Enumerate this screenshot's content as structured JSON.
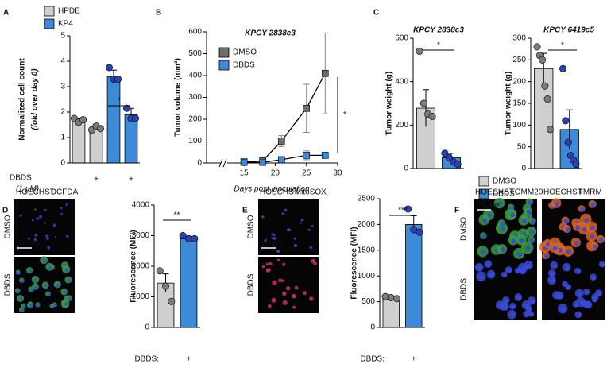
{
  "chart_data": [
    {
      "type": "bar",
      "panel": "A",
      "ylabel": "Normalized cell count",
      "ylabel_sub": "(fold over day 0)",
      "categories": [
        null,
        "+"
      ],
      "x_label": "DBDS",
      "x_label_sub": "(1 µM)",
      "series": [
        {
          "name": "HPDE",
          "color": "#cfcfcf",
          "point_color": "#7a7a7a",
          "values": [
            1.65,
            1.35
          ],
          "errors": [
            0.08,
            0.06
          ],
          "points": [
            [
              1.75,
              1.6,
              1.7
            ],
            [
              1.3,
              1.45,
              1.35
            ]
          ]
        },
        {
          "name": "KP4",
          "color": "#3d8ad8",
          "point_color": "#2e3fb2",
          "values": [
            3.4,
            1.9
          ],
          "errors": [
            0.25,
            0.25
          ],
          "points": [
            [
              3.75,
              3.3,
              3.3
            ],
            [
              2.15,
              1.75,
              1.75
            ]
          ]
        }
      ],
      "ylim": [
        0,
        5
      ],
      "yticks": [
        0,
        1,
        2,
        3,
        4,
        5
      ],
      "significance": "*"
    },
    {
      "type": "line",
      "panel": "B",
      "title": "KPCY 2838c3",
      "ylabel": "Tumor volume (mm³)",
      "xlabel": "Days post inoculation",
      "x": [
        15,
        18,
        21,
        25,
        28
      ],
      "series": [
        {
          "name": "DMSO",
          "color": "#6e6e6e",
          "values": [
            5,
            10,
            100,
            250,
            410
          ],
          "errors": [
            0,
            0,
            25,
            110,
            185
          ]
        },
        {
          "name": "DBDS",
          "color": "#3d8ad8",
          "values": [
            3,
            3,
            15,
            35,
            35
          ],
          "errors": [
            0,
            0,
            5,
            20,
            12
          ]
        }
      ],
      "xlim": [
        9,
        30
      ],
      "xticks": [
        15,
        20,
        25,
        30
      ],
      "ylim": [
        0,
        600
      ],
      "yticks": [
        0,
        100,
        200,
        300,
        400,
        500,
        600
      ],
      "significance": "*"
    },
    {
      "type": "bar",
      "panel": "C",
      "title": "KPCY 2838c3",
      "ylabel": "Tumor weight (g)",
      "values": [
        278,
        50
      ],
      "colors": [
        "#cfcfcf",
        "#3d8ad8"
      ],
      "point_colors": [
        "#7a7a7a",
        "#2e3fb2"
      ],
      "errors": [
        85,
        20
      ],
      "points": [
        [
          540,
          300,
          250,
          240
        ],
        [
          70,
          50,
          30,
          20
        ]
      ],
      "ylim": [
        0,
        600
      ],
      "yticks": [
        0,
        200,
        400,
        600
      ],
      "significance": "*"
    },
    {
      "type": "bar",
      "title": "KPCY 6419c5",
      "ylabel": "Tumor weight (g)",
      "values": [
        230,
        90
      ],
      "colors": [
        "#cfcfcf",
        "#3d8ad8"
      ],
      "point_colors": [
        "#7a7a7a",
        "#2e3fb2"
      ],
      "errors": [
        35,
        45
      ],
      "points": [
        [
          280,
          260,
          250,
          190,
          160,
          90
        ],
        [
          230,
          110,
          60,
          30,
          20,
          10
        ]
      ],
      "ylim": [
        0,
        300
      ],
      "yticks": [
        0,
        50,
        100,
        150,
        200,
        250,
        300
      ],
      "significance": "*",
      "legend": [
        {
          "name": "DMSO",
          "color": "#cfcfcf"
        },
        {
          "name": "DBDS",
          "color": "#3d8ad8"
        }
      ]
    },
    {
      "type": "bar",
      "ylabel": "Fluorescence (MFI)",
      "categories": [
        null,
        "+"
      ],
      "x_label": "DBDS:",
      "values": [
        1450,
        2900
      ],
      "colors": [
        "#cfcfcf",
        "#3d8ad8"
      ],
      "point_colors": [
        "#7a7a7a",
        "#2e3fb2"
      ],
      "errors": [
        300,
        80
      ],
      "points": [
        [
          1850,
          1350,
          850
        ],
        [
          3000,
          2900,
          2900
        ]
      ],
      "ylim": [
        0,
        4000
      ],
      "yticks": [
        0,
        1000,
        2000,
        3000,
        4000
      ],
      "significance": "**"
    },
    {
      "type": "bar",
      "ylabel": "Fluorescence (MFI)",
      "categories": [
        null,
        "+"
      ],
      "x_label": "DBDS:",
      "values": [
        550,
        2000
      ],
      "colors": [
        "#cfcfcf",
        "#3d8ad8"
      ],
      "point_colors": [
        "#7a7a7a",
        "#2e3fb2"
      ],
      "errors": [
        40,
        170
      ],
      "points": [
        [
          600,
          580,
          560
        ],
        [
          2300,
          1900,
          1850
        ]
      ],
      "ylim": [
        0,
        2500
      ],
      "yticks": [
        0,
        500,
        1000,
        1500,
        2000,
        2500
      ],
      "significance": "***"
    }
  ],
  "image_panels": [
    {
      "panel": "D",
      "rows": [
        "DMSO",
        "DBDS"
      ],
      "scale_bar": "50 µm",
      "columns": [
        {
          "channels": [
            {
              "name": "HOECHST",
              "color": "#5a5ad8"
            },
            {
              "name": "DCFDA",
              "color": "#3aa83a"
            }
          ]
        }
      ]
    },
    {
      "panel": "E",
      "rows": [
        "DMSO",
        "DBDS"
      ],
      "scale_bar": "50 µm",
      "columns": [
        {
          "channels": [
            {
              "name": "HOECHST",
              "color": "#5a5ad8"
            },
            {
              "name": "MitoSOX",
              "color": "#d8304a"
            }
          ]
        }
      ]
    },
    {
      "panel": "F",
      "rows": [
        "DMSO",
        "DBDS"
      ],
      "scale_bar": "10 µm",
      "columns": [
        {
          "channels": [
            {
              "name": "HOECHST",
              "color": "#5a5ad8"
            },
            {
              "name": "TOMM20",
              "color": "#3aa83a"
            }
          ]
        },
        {
          "channels": [
            {
              "name": "HOECHST",
              "color": "#5a5ad8"
            },
            {
              "name": "TMRM",
              "color": "#e8702a"
            }
          ]
        }
      ]
    }
  ]
}
